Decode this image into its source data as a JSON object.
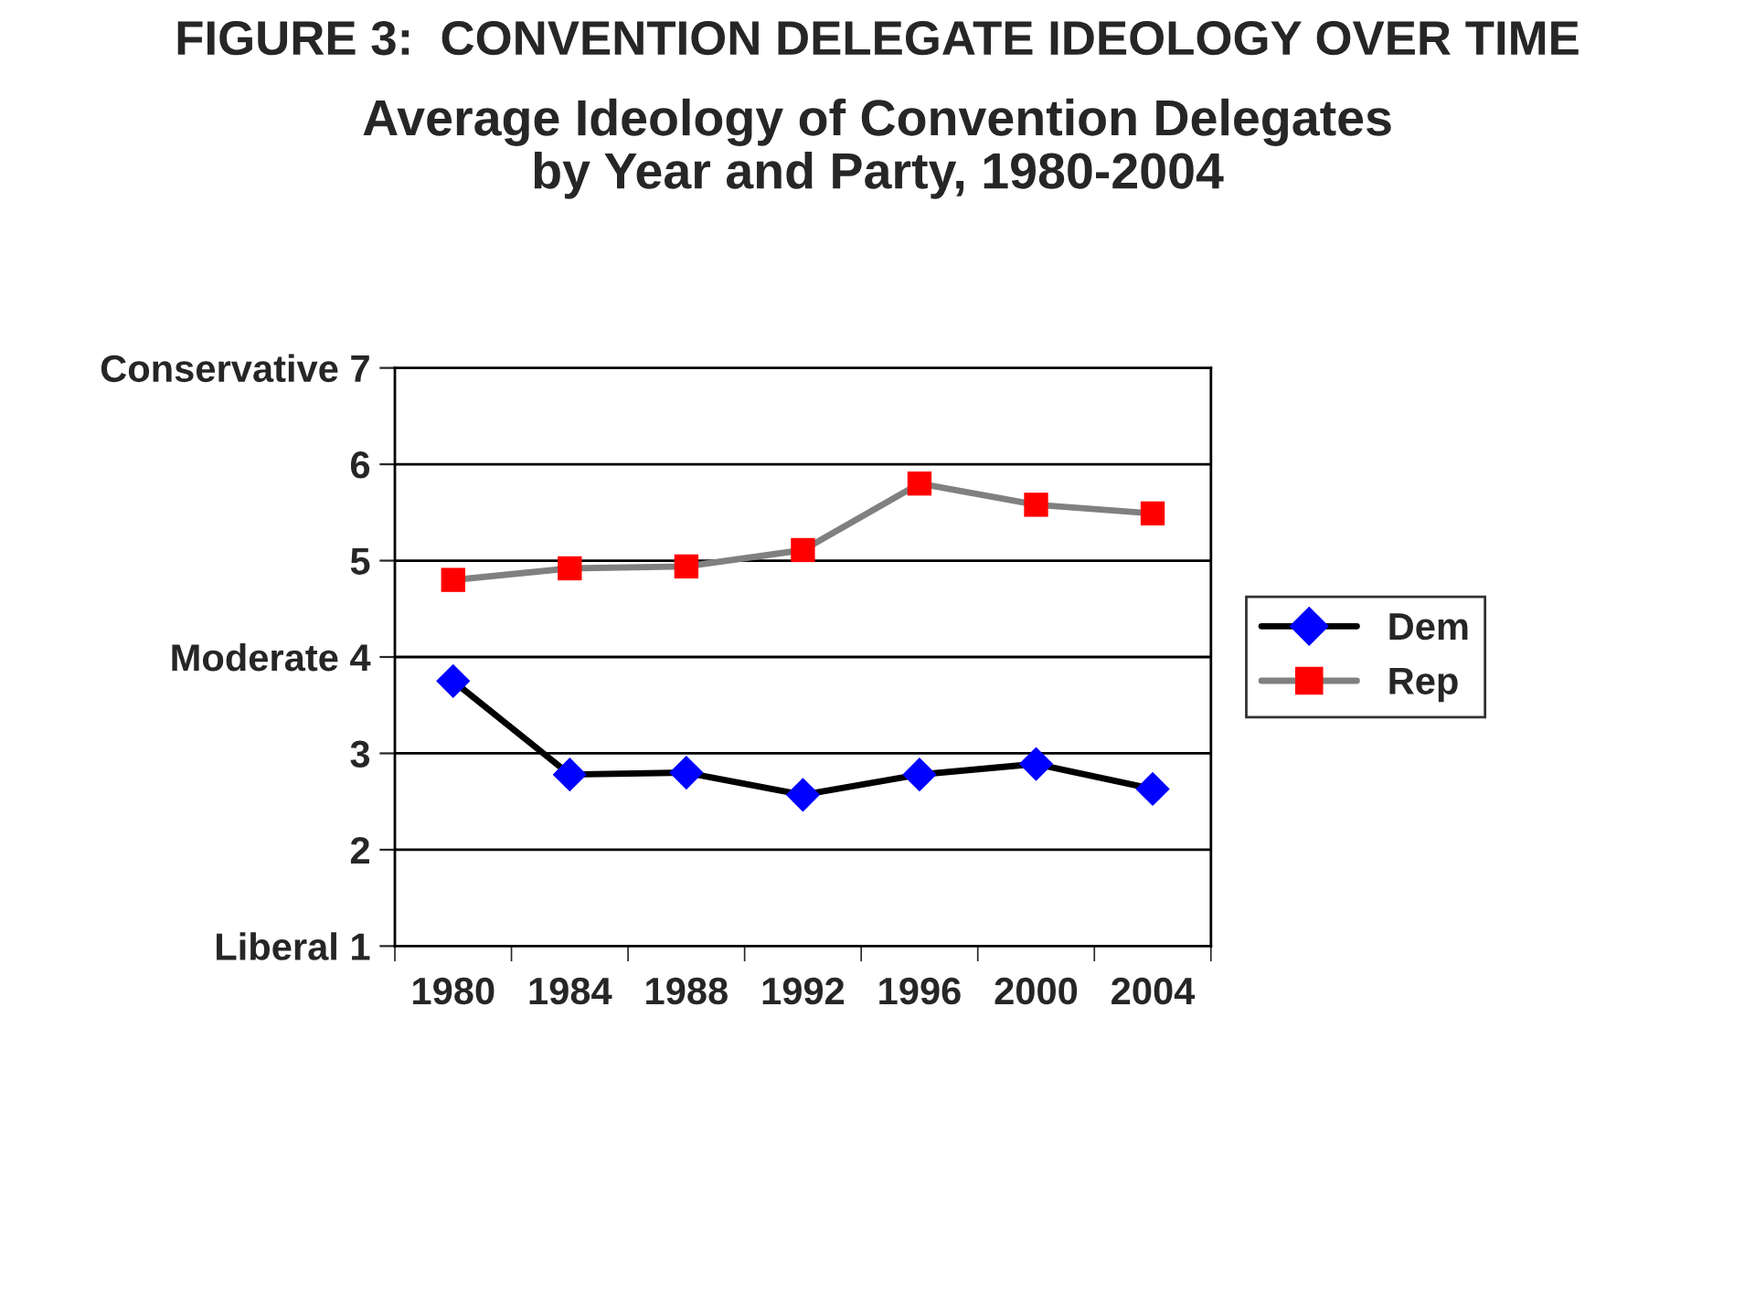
{
  "chart_data": {
    "type": "line",
    "title": "FIGURE 3:  CONVENTION DELEGATE IDEOLOGY OVER TIME",
    "subtitle": "Average Ideology of Convention Delegates\nby Year and Party, 1980-2004",
    "categories": [
      "1980",
      "1984",
      "1988",
      "1992",
      "1996",
      "2000",
      "2004"
    ],
    "series": [
      {
        "name": "Dem",
        "color": "#000000",
        "colors": [
          "#0000ff",
          "#0000ff",
          "#0000ff",
          "#0000ff",
          "#0000ff",
          "#0000ff",
          "#0000ff"
        ],
        "marker": "diamond",
        "values": [
          3.75,
          2.78,
          2.8,
          2.57,
          2.78,
          2.89,
          2.63
        ]
      },
      {
        "name": "Rep",
        "color": "#808080",
        "colors": [
          "#ff0000",
          "#ff0000",
          "#ff0000",
          "#ff0000",
          "#ff0000",
          "#ff0000",
          "#ff0000"
        ],
        "marker": "square",
        "values": [
          4.8,
          4.92,
          4.94,
          5.11,
          5.8,
          5.58,
          5.49
        ]
      }
    ],
    "ylim": [
      1,
      7
    ],
    "yticks": [
      {
        "value": 1,
        "label": "Liberal 1"
      },
      2,
      3,
      {
        "value": 4,
        "label": "Moderate 4"
      },
      5,
      6,
      {
        "value": 7,
        "label": "Conservative 7"
      }
    ],
    "grid": "y",
    "legend": "right",
    "line_style": "solid"
  }
}
